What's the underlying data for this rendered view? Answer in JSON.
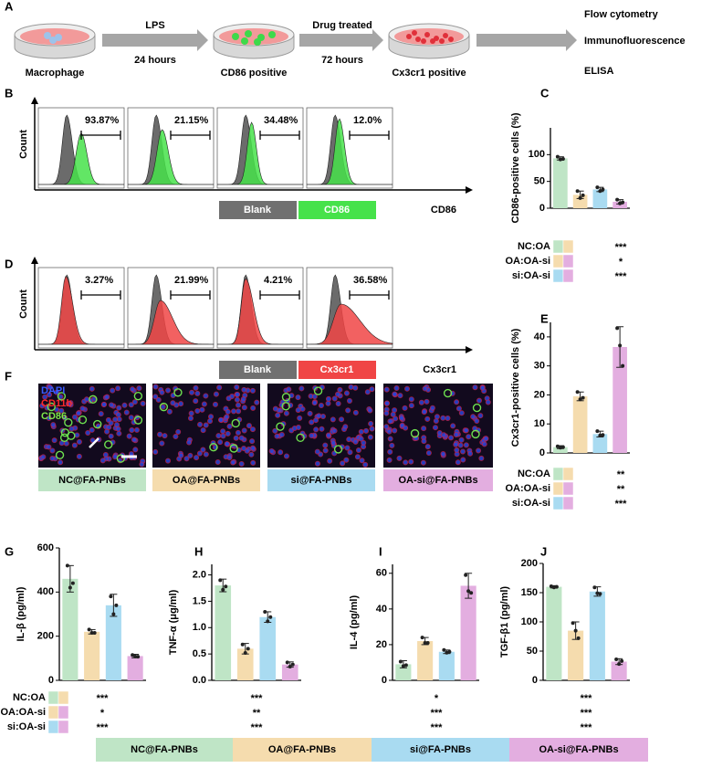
{
  "panel_letters": [
    "A",
    "B",
    "C",
    "D",
    "E",
    "F",
    "G",
    "H",
    "I",
    "J"
  ],
  "workflow": {
    "steps": [
      "Macrophage",
      "CD86 positive",
      "Cx3cr1 positive"
    ],
    "arrows": [
      {
        "top": "LPS",
        "bottom": "24 hours"
      },
      {
        "top": "Drug treated",
        "bottom": "72 hours"
      }
    ],
    "assays": [
      "Flow cytometry",
      "Immunofluorescence",
      "ELISA"
    ]
  },
  "flow_cd86": {
    "y_label": "Count",
    "x_label": "CD86",
    "percentages": [
      "93.87%",
      "21.15%",
      "34.48%",
      "12.0%"
    ],
    "legend": [
      "Blank",
      "CD86"
    ]
  },
  "flow_cx3cr1": {
    "y_label": "Count",
    "x_label": "Cx3cr1",
    "percentages": [
      "3.27%",
      "21.99%",
      "4.21%",
      "36.58%"
    ],
    "legend": [
      "Blank",
      "Cx3cr1"
    ]
  },
  "imaging": {
    "channels": [
      "DAPI",
      "CD11b",
      "CD86"
    ],
    "captions": [
      "NC@FA-PNBs",
      "OA@FA-PNBs",
      "si@FA-PNBs",
      "OA-si@FA-PNBs"
    ]
  },
  "groups": [
    "NC@FA-PNBs",
    "OA@FA-PNBs",
    "si@FA-PNBs",
    "OA-si@FA-PNBs"
  ],
  "chart_data": [
    {
      "type": "bar",
      "y_label": "CD86-positive cells (%)",
      "values": [
        93,
        25,
        35,
        12
      ],
      "errors": [
        3,
        7,
        4,
        4
      ],
      "points": [
        [
          96,
          91,
          92
        ],
        [
          32,
          19,
          24
        ],
        [
          39,
          32,
          35
        ],
        [
          16,
          9,
          11
        ]
      ],
      "colors": [
        "#bfe5c6",
        "#f5dcae",
        "#a9dbf1",
        "#e3aee0"
      ],
      "ylim": [
        0,
        150
      ],
      "yticks": [
        0,
        50,
        100
      ],
      "comparisons": [
        "NC:OA",
        "OA:OA-si",
        "si:OA-si"
      ],
      "significance": [
        "***",
        "*",
        "***"
      ]
    },
    {
      "type": "bar",
      "y_label": "Cx3cr1-positive cells  (%)",
      "values": [
        2,
        19.5,
        6.5,
        36.5
      ],
      "errors": [
        0.5,
        1.5,
        1,
        7
      ],
      "points": [
        [
          2.3,
          1.8,
          2
        ],
        [
          21,
          18.5,
          19
        ],
        [
          7.5,
          6,
          6.2
        ],
        [
          43,
          37,
          30
        ]
      ],
      "colors": [
        "#bfe5c6",
        "#f5dcae",
        "#a9dbf1",
        "#e3aee0"
      ],
      "ylim": [
        0,
        45
      ],
      "yticks": [
        0,
        10,
        20,
        30,
        40
      ],
      "comparisons": [
        "NC:OA",
        "OA:OA-si",
        "si:OA-si"
      ],
      "significance": [
        "**",
        "**",
        "***"
      ]
    },
    {
      "type": "bar",
      "y_label": "IL-β (pg/ml)",
      "values": [
        460,
        220,
        340,
        110
      ],
      "errors": [
        60,
        10,
        50,
        8
      ],
      "points": [
        [
          520,
          420,
          440
        ],
        [
          230,
          215,
          215
        ],
        [
          380,
          300,
          340
        ],
        [
          115,
          108,
          107
        ]
      ],
      "colors": [
        "#bfe5c6",
        "#f5dcae",
        "#a9dbf1",
        "#e3aee0"
      ],
      "ylim": [
        0,
        600
      ],
      "yticks": [
        0,
        200,
        400,
        600
      ],
      "comparisons": [
        "NC:OA",
        "OA:OA-si",
        "si:OA-si"
      ],
      "significance": [
        "***",
        "*",
        "***"
      ]
    },
    {
      "type": "bar",
      "y_label": "TNF-α (μg/ml)",
      "values": [
        1.8,
        0.6,
        1.2,
        0.3
      ],
      "errors": [
        0.12,
        0.1,
        0.1,
        0.05
      ],
      "points": [
        [
          1.9,
          1.72,
          1.78
        ],
        [
          0.68,
          0.52,
          0.6
        ],
        [
          1.3,
          1.12,
          1.2
        ],
        [
          0.34,
          0.26,
          0.3
        ]
      ],
      "colors": [
        "#bfe5c6",
        "#f5dcae",
        "#a9dbf1",
        "#e3aee0"
      ],
      "ylim": [
        0,
        2.2
      ],
      "yticks": [
        {
          "value": 0,
          "label": "0.0"
        },
        0.5,
        {
          "value": 1,
          "label": "1.0"
        },
        1.5,
        {
          "value": 2,
          "label": "2.0"
        }
      ],
      "significance": [
        "***",
        "**",
        "***"
      ]
    },
    {
      "type": "bar",
      "y_label": "IL-4 (pg/ml)",
      "values": [
        9,
        22,
        16,
        53
      ],
      "errors": [
        2,
        2,
        1,
        7
      ],
      "points": [
        [
          10.5,
          8,
          8.5
        ],
        [
          24,
          21,
          21
        ],
        [
          17,
          15.5,
          16
        ],
        [
          59,
          50,
          49
        ]
      ],
      "colors": [
        "#bfe5c6",
        "#f5dcae",
        "#a9dbf1",
        "#e3aee0"
      ],
      "ylim": [
        0,
        65
      ],
      "yticks": [
        0,
        20,
        40,
        60
      ],
      "significance": [
        "*",
        "***",
        "***"
      ]
    },
    {
      "type": "bar",
      "y_label": "TGF-β1 (pg/ml)",
      "values": [
        160,
        85,
        152,
        32
      ],
      "errors": [
        2,
        15,
        8,
        5
      ],
      "points": [
        [
          161,
          159,
          160
        ],
        [
          98,
          85,
          72
        ],
        [
          159,
          149,
          148
        ],
        [
          36,
          28,
          33
        ]
      ],
      "colors": [
        "#bfe5c6",
        "#f5dcae",
        "#a9dbf1",
        "#e3aee0"
      ],
      "ylim": [
        0,
        200
      ],
      "yticks": [
        0,
        50,
        100,
        150,
        200
      ],
      "significance": [
        "***",
        "***",
        "***"
      ]
    }
  ]
}
